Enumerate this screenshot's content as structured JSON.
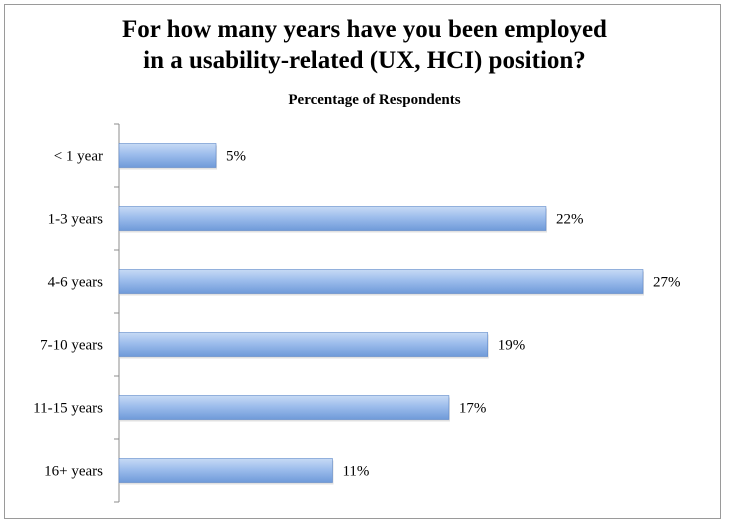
{
  "chart_data": {
    "type": "bar",
    "orientation": "horizontal",
    "title_lines": [
      "For how many years have you been employed",
      "in a usability-related (UX, HCI) position?"
    ],
    "subtitle": "Percentage of Respondents",
    "categories": [
      "< 1 year",
      "1-3 years",
      "4-6 years",
      "7-10 years",
      "11-15 years",
      "16+ years"
    ],
    "values": [
      5,
      22,
      27,
      19,
      17,
      11
    ],
    "value_labels": [
      "5%",
      "22%",
      "27%",
      "19%",
      "17%",
      "11%"
    ],
    "xlim": [
      0,
      27
    ],
    "grid": false,
    "legend": "none",
    "bar_color": "#86aee6"
  }
}
